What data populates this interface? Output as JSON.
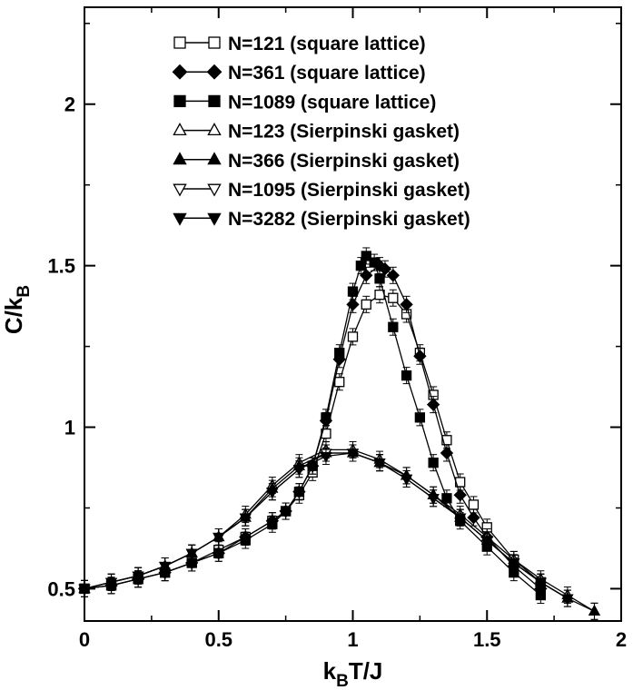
{
  "chart_data": {
    "type": "line",
    "title": "",
    "xlabel": {
      "main": "k",
      "sub": "B",
      "rest": "T/J"
    },
    "ylabel": {
      "main": "C/k",
      "sub": "B"
    },
    "xlim": [
      0,
      2
    ],
    "ylim": [
      0.4,
      2.3
    ],
    "xticks": [
      0,
      0.5,
      1,
      1.5,
      2
    ],
    "xtick_labels": [
      "0",
      "0.5",
      "1",
      "1.5",
      "2"
    ],
    "yticks": [
      0.5,
      1,
      1.5,
      2
    ],
    "ytick_labels": [
      "0.5",
      "1",
      "1.5",
      "2"
    ],
    "grid": false,
    "legend_position": "top-center",
    "series": [
      {
        "name": "N=121 (square lattice)",
        "marker": "square",
        "filled": false,
        "x": [
          0.0,
          0.1,
          0.2,
          0.3,
          0.4,
          0.5,
          0.6,
          0.7,
          0.75,
          0.8,
          0.85,
          0.9,
          0.95,
          1.0,
          1.05,
          1.1,
          1.15,
          1.2,
          1.25,
          1.3,
          1.35,
          1.4,
          1.45,
          1.5,
          1.6,
          1.7
        ],
        "y": [
          0.5,
          0.51,
          0.53,
          0.55,
          0.58,
          0.62,
          0.66,
          0.71,
          0.74,
          0.79,
          0.86,
          0.98,
          1.14,
          1.28,
          1.38,
          1.41,
          1.4,
          1.35,
          1.23,
          1.1,
          0.96,
          0.83,
          0.76,
          0.69,
          0.59,
          0.52
        ]
      },
      {
        "name": "N=361 (square lattice)",
        "marker": "diamond",
        "filled": true,
        "x": [
          0.0,
          0.1,
          0.2,
          0.3,
          0.4,
          0.5,
          0.6,
          0.7,
          0.75,
          0.8,
          0.85,
          0.9,
          0.95,
          1.0,
          1.05,
          1.1,
          1.12,
          1.15,
          1.2,
          1.25,
          1.3,
          1.35,
          1.4,
          1.45,
          1.5,
          1.6,
          1.7
        ],
        "y": [
          0.5,
          0.51,
          0.53,
          0.55,
          0.58,
          0.61,
          0.66,
          0.71,
          0.74,
          0.8,
          0.88,
          1.02,
          1.21,
          1.38,
          1.47,
          1.5,
          1.49,
          1.47,
          1.38,
          1.22,
          1.07,
          0.92,
          0.79,
          0.72,
          0.66,
          0.57,
          0.5
        ]
      },
      {
        "name": "N=1089 (square lattice)",
        "marker": "square",
        "filled": true,
        "x": [
          0.0,
          0.1,
          0.2,
          0.3,
          0.4,
          0.5,
          0.6,
          0.7,
          0.75,
          0.8,
          0.85,
          0.9,
          0.95,
          1.0,
          1.03,
          1.05,
          1.08,
          1.1,
          1.15,
          1.2,
          1.25,
          1.3,
          1.35,
          1.4,
          1.5,
          1.6,
          1.7
        ],
        "y": [
          0.5,
          0.51,
          0.53,
          0.55,
          0.58,
          0.61,
          0.65,
          0.7,
          0.74,
          0.8,
          0.88,
          1.03,
          1.23,
          1.42,
          1.5,
          1.53,
          1.51,
          1.46,
          1.31,
          1.16,
          1.03,
          0.89,
          0.78,
          0.71,
          0.63,
          0.55,
          0.48
        ]
      },
      {
        "name": "N=123 (Sierpinski gasket)",
        "marker": "triangle-up",
        "filled": false,
        "x": [
          0.0,
          0.1,
          0.2,
          0.3,
          0.4,
          0.5,
          0.6,
          0.7,
          0.8,
          0.9,
          1.0,
          1.1,
          1.2,
          1.3,
          1.4,
          1.5,
          1.6,
          1.7,
          1.8,
          1.9
        ],
        "y": [
          0.5,
          0.52,
          0.54,
          0.57,
          0.61,
          0.66,
          0.73,
          0.82,
          0.89,
          0.93,
          0.93,
          0.9,
          0.85,
          0.79,
          0.73,
          0.66,
          0.59,
          0.53,
          0.48,
          0.43
        ]
      },
      {
        "name": "N=366 (Sierpinski gasket)",
        "marker": "triangle-up",
        "filled": true,
        "x": [
          0.0,
          0.1,
          0.2,
          0.3,
          0.4,
          0.5,
          0.6,
          0.7,
          0.8,
          0.9,
          1.0,
          1.1,
          1.2,
          1.3,
          1.4,
          1.5,
          1.6,
          1.7,
          1.8,
          1.9
        ],
        "y": [
          0.5,
          0.52,
          0.54,
          0.57,
          0.61,
          0.66,
          0.72,
          0.81,
          0.88,
          0.92,
          0.92,
          0.89,
          0.85,
          0.79,
          0.72,
          0.65,
          0.58,
          0.52,
          0.47,
          0.43
        ]
      },
      {
        "name": "N=1095 (Sierpinski gasket)",
        "marker": "triangle-down",
        "filled": false,
        "x": [
          0.0,
          0.1,
          0.2,
          0.3,
          0.4,
          0.5,
          0.6,
          0.7,
          0.8,
          0.9,
          1.0,
          1.1,
          1.2,
          1.3,
          1.4,
          1.5,
          1.6,
          1.7,
          1.8
        ],
        "y": [
          0.5,
          0.52,
          0.54,
          0.57,
          0.61,
          0.66,
          0.72,
          0.8,
          0.87,
          0.92,
          0.92,
          0.89,
          0.84,
          0.78,
          0.72,
          0.65,
          0.58,
          0.52,
          0.47
        ]
      },
      {
        "name": "N=3282 (Sierpinski gasket)",
        "marker": "triangle-down",
        "filled": true,
        "x": [
          0.0,
          0.1,
          0.2,
          0.3,
          0.4,
          0.5,
          0.6,
          0.7,
          0.8,
          0.9,
          1.0,
          1.1,
          1.2,
          1.3,
          1.4,
          1.5,
          1.6,
          1.7,
          1.8
        ],
        "y": [
          0.5,
          0.52,
          0.54,
          0.57,
          0.61,
          0.66,
          0.72,
          0.8,
          0.87,
          0.91,
          0.92,
          0.89,
          0.84,
          0.78,
          0.72,
          0.65,
          0.58,
          0.52,
          0.47
        ]
      }
    ]
  }
}
